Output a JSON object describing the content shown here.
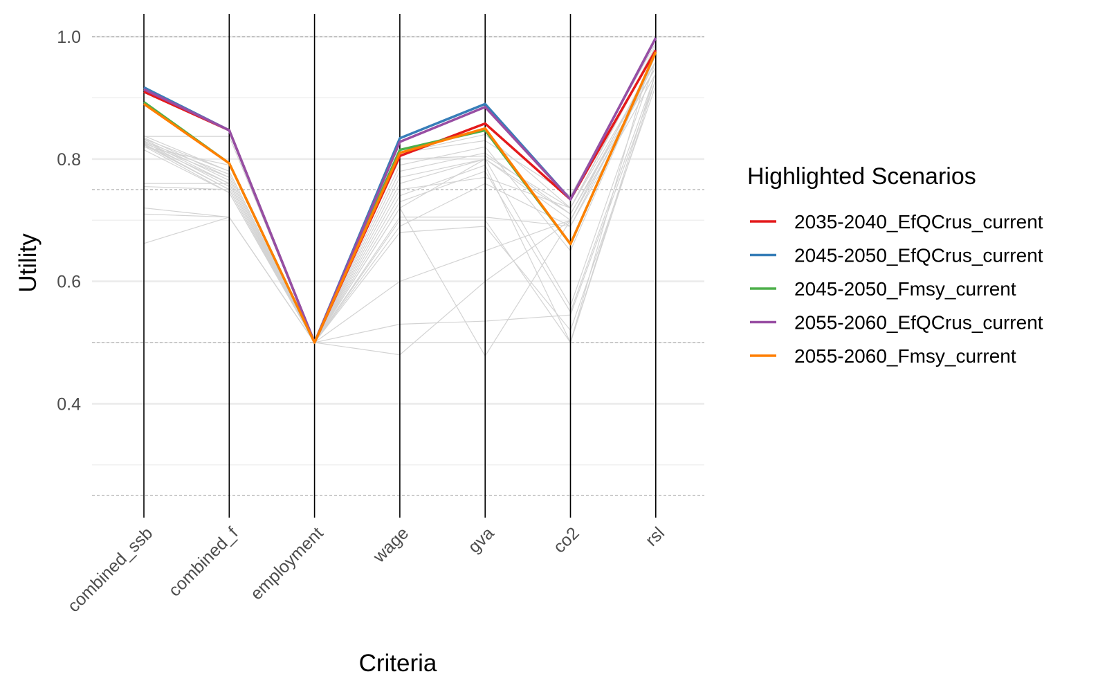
{
  "chart_data": {
    "type": "line",
    "subtype": "parallel-coordinates",
    "xlabel": "Criteria",
    "ylabel": "Utility",
    "categories": [
      "combined_ssb",
      "combined_f",
      "employment",
      "wage",
      "gva",
      "co2",
      "rsl"
    ],
    "ylim": [
      0.22,
      1.04
    ],
    "y_ticks": [
      0.4,
      0.6,
      0.8,
      1.0
    ],
    "y_tick_labels": [
      "0.4",
      "0.6",
      "0.8",
      "1.0"
    ],
    "dashed_reference_lines": [
      0.25,
      0.5,
      0.75,
      1.0
    ],
    "grid": true,
    "legend": {
      "title": "Highlighted Scenarios",
      "position": "right"
    },
    "highlighted_series": [
      {
        "name": "2035-2040_EfQCrus_current",
        "color": "#E41A1C",
        "values": [
          0.91,
          0.847,
          0.5,
          0.805,
          0.858,
          0.734,
          0.978
        ]
      },
      {
        "name": "2045-2050_EfQCrus_current",
        "color": "#377EB8",
        "values": [
          0.917,
          0.847,
          0.5,
          0.834,
          0.89,
          0.734,
          0.998
        ]
      },
      {
        "name": "2045-2050_Fmsy_current",
        "color": "#4DAF4A",
        "values": [
          0.893,
          0.793,
          0.5,
          0.815,
          0.847,
          0.661,
          0.975
        ]
      },
      {
        "name": "2055-2060_EfQCrus_current",
        "color": "#984EA3",
        "values": [
          0.914,
          0.847,
          0.5,
          0.828,
          0.885,
          0.734,
          0.998
        ]
      },
      {
        "name": "2055-2060_Fmsy_current",
        "color": "#FF7F00",
        "values": [
          0.89,
          0.793,
          0.5,
          0.81,
          0.85,
          0.661,
          0.975
        ]
      }
    ],
    "background_series": {
      "color": "#D3D3D3",
      "values": [
        [
          0.837,
          0.837,
          0.5,
          0.81,
          0.84,
          0.72,
          0.96
        ],
        [
          0.83,
          0.76,
          0.5,
          0.76,
          0.8,
          0.7,
          0.95
        ],
        [
          0.825,
          0.75,
          0.5,
          0.73,
          0.78,
          0.55,
          0.94
        ],
        [
          0.82,
          0.79,
          0.5,
          0.79,
          0.82,
          0.65,
          0.97
        ],
        [
          0.835,
          0.77,
          0.5,
          0.78,
          0.81,
          0.71,
          0.96
        ],
        [
          0.76,
          0.76,
          0.5,
          0.7,
          0.7,
          0.5,
          0.93
        ],
        [
          0.755,
          0.75,
          0.5,
          0.68,
          0.69,
          0.52,
          0.92
        ],
        [
          0.72,
          0.705,
          0.5,
          0.6,
          0.65,
          0.7,
          0.95
        ],
        [
          0.71,
          0.705,
          0.5,
          0.705,
          0.705,
          0.69,
          0.94
        ],
        [
          0.662,
          0.705,
          0.5,
          0.53,
          0.535,
          0.545,
          0.93
        ],
        [
          0.838,
          0.78,
          0.5,
          0.5,
          0.5,
          0.5,
          0.99
        ],
        [
          0.828,
          0.755,
          0.5,
          0.48,
          0.6,
          0.7,
          0.95
        ],
        [
          0.815,
          0.745,
          0.5,
          0.77,
          0.8,
          0.56,
          0.96
        ],
        [
          0.832,
          0.765,
          0.5,
          0.75,
          0.77,
          0.72,
          0.98
        ],
        [
          0.826,
          0.77,
          0.5,
          0.72,
          0.478,
          0.7,
          0.97
        ],
        [
          0.824,
          0.76,
          0.5,
          0.74,
          0.79,
          0.5,
          0.94
        ],
        [
          0.833,
          0.78,
          0.5,
          0.81,
          0.83,
          0.74,
          0.99
        ],
        [
          0.829,
          0.775,
          0.5,
          0.8,
          0.805,
          0.72,
          0.985
        ],
        [
          0.823,
          0.75,
          0.5,
          0.69,
          0.76,
          0.69,
          0.96
        ],
        [
          0.821,
          0.745,
          0.5,
          0.72,
          0.8,
          0.71,
          0.95
        ]
      ]
    }
  }
}
